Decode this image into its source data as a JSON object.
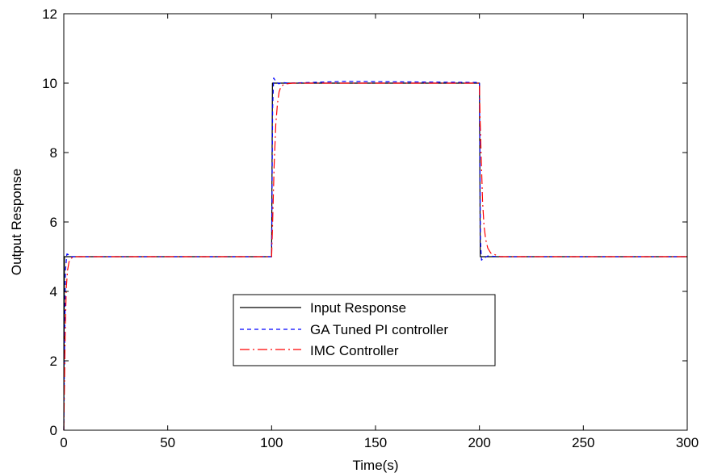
{
  "chart_data": {
    "type": "line",
    "title": "",
    "xlabel": "Time(s)",
    "ylabel": "Output Response",
    "xlim": [
      0,
      300
    ],
    "ylim": [
      0,
      12
    ],
    "xticks": [
      0,
      50,
      100,
      150,
      200,
      250,
      300
    ],
    "yticks": [
      0,
      2,
      4,
      6,
      8,
      10,
      12
    ],
    "grid": false,
    "legend_position": "center",
    "series": [
      {
        "name": "Input Response",
        "color": "#000000",
        "style": "solid",
        "x": [
          0,
          0.3,
          0.6,
          100,
          100.4,
          200,
          200.4,
          300
        ],
        "y": [
          0,
          5,
          5,
          5,
          10,
          10,
          5,
          5
        ]
      },
      {
        "name": "GA Tuned PI controller",
        "color": "#0000ff",
        "style": "dashed",
        "x": [
          0,
          0.4,
          0.8,
          1.5,
          2.5,
          3.5,
          5,
          100,
          100.5,
          101,
          102,
          103.5,
          105,
          108,
          135,
          200,
          200.5,
          201,
          202,
          204,
          210,
          300
        ],
        "y": [
          0,
          2.5,
          4.6,
          5.08,
          5.05,
          5.0,
          5.0,
          5.0,
          9.3,
          10.15,
          10.05,
          9.98,
          10.02,
          10.0,
          10.05,
          10.02,
          5.5,
          4.9,
          4.95,
          5.02,
          5.0,
          5.0
        ]
      },
      {
        "name": "IMC Controller",
        "color": "#ff0000",
        "style": "dashdot",
        "x": [
          0,
          0.7,
          1.2,
          1.8,
          2.5,
          3.3,
          4.2,
          6,
          10,
          100,
          100.5,
          101.2,
          102,
          102.8,
          103.6,
          104.5,
          106,
          110,
          200,
          200.3,
          200.8,
          201.5,
          202.2,
          203,
          204,
          205.5,
          210,
          300
        ],
        "y": [
          0,
          2.9,
          4.1,
          4.6,
          4.85,
          4.94,
          4.98,
          5.0,
          5.0,
          5.0,
          6.0,
          7.6,
          8.8,
          9.4,
          9.75,
          9.9,
          9.97,
          10.0,
          10.0,
          9.0,
          8.0,
          6.6,
          5.9,
          5.5,
          5.25,
          5.1,
          5.0,
          5.0
        ]
      }
    ]
  }
}
